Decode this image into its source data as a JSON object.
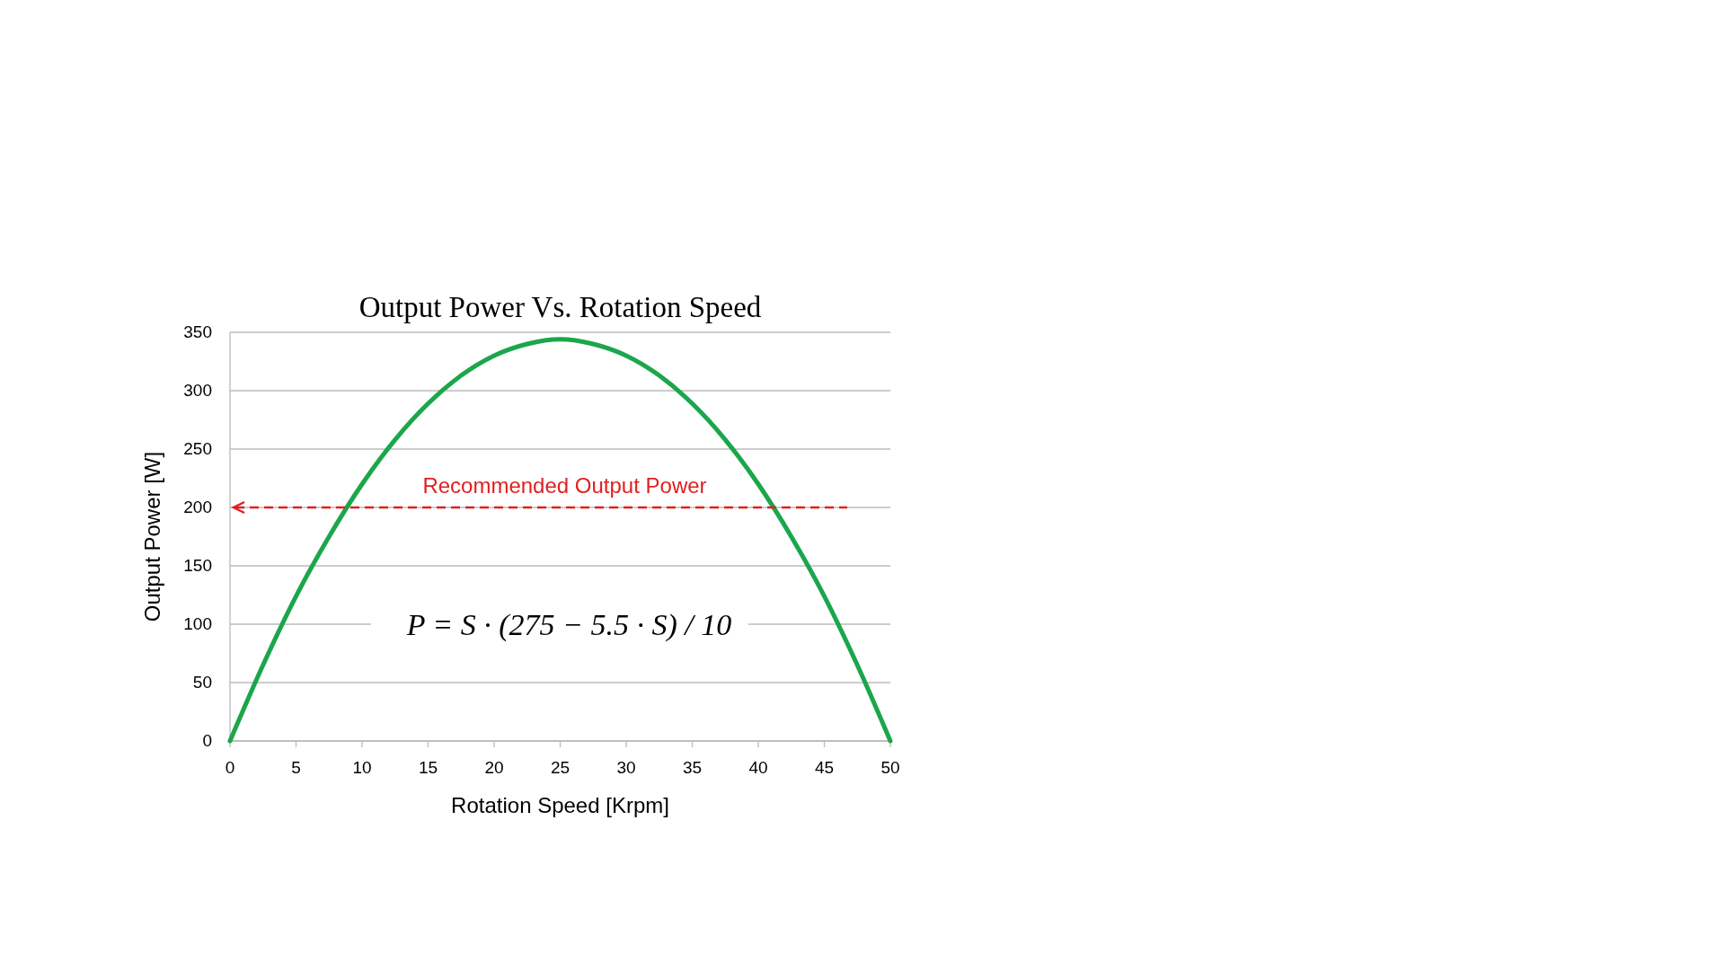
{
  "chart_data": {
    "type": "line",
    "title": "Output Power Vs. Rotation Speed",
    "xlabel": "Rotation Speed [Krpm]",
    "ylabel": "Output Power [W]",
    "x": [
      0,
      2.5,
      5,
      7.5,
      10,
      12.5,
      15,
      17.5,
      20,
      22.5,
      25,
      27.5,
      30,
      32.5,
      35,
      37.5,
      40,
      42.5,
      45,
      47.5,
      50
    ],
    "series": [
      {
        "color": "#1ca64c",
        "values": [
          0,
          65,
          124,
          175,
          220,
          258,
          289,
          313,
          330,
          340,
          344,
          340,
          330,
          313,
          289,
          258,
          220,
          175,
          124,
          65,
          0
        ]
      }
    ],
    "xlim": [
      0,
      50
    ],
    "xticks": [
      0,
      5,
      10,
      15,
      20,
      25,
      30,
      35,
      40,
      45,
      50
    ],
    "ylim": [
      0,
      350
    ],
    "yticks": [
      0,
      50,
      100,
      150,
      200,
      250,
      300,
      350
    ],
    "grid": "y",
    "marker": "none",
    "line_style": "solid",
    "ref_lines": [
      {
        "axis": "y",
        "value": 200,
        "label": "Recommended Output Power",
        "color": "#e02020",
        "line_style": "dashed"
      }
    ],
    "annotations": [
      "P = S · (275 − 5.5 · S) / 10"
    ]
  }
}
